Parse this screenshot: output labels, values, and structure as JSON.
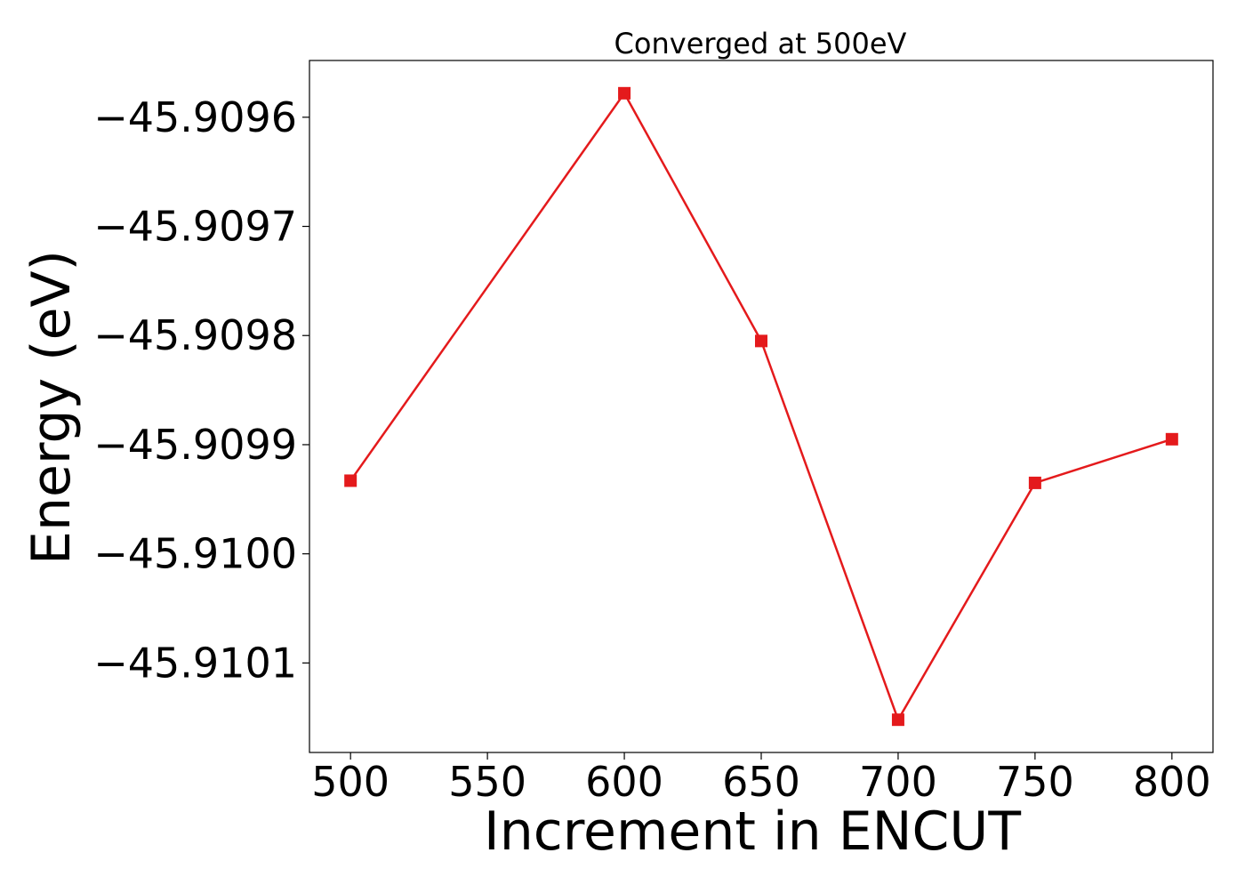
{
  "chart_data": {
    "type": "line",
    "title": "Converged at 500eV",
    "xlabel": "Increment in ENCUT",
    "ylabel": "Energy (eV)",
    "x": [
      500,
      600,
      650,
      700,
      750,
      800
    ],
    "series": [
      {
        "values": [
          -45.909933,
          -45.909578,
          -45.909805,
          -45.910152,
          -45.909935,
          -45.909895
        ],
        "color": "#e41a1c",
        "marker": "square"
      }
    ],
    "xlim": [
      485,
      815
    ],
    "ylim": [
      -45.910182,
      -45.909548
    ],
    "xticks": [
      500,
      550,
      600,
      650,
      700,
      750,
      800
    ],
    "xtick_labels": [
      "500",
      "550",
      "600",
      "650",
      "700",
      "750",
      "800"
    ],
    "yticks": [
      -45.9096,
      -45.9097,
      -45.9098,
      -45.9099,
      -45.91,
      -45.9101
    ],
    "ytick_labels": [
      "−45.9096",
      "−45.9097",
      "−45.9098",
      "−45.9099",
      "−45.9100",
      "−45.9101"
    ],
    "grid": false,
    "legend": "none"
  }
}
